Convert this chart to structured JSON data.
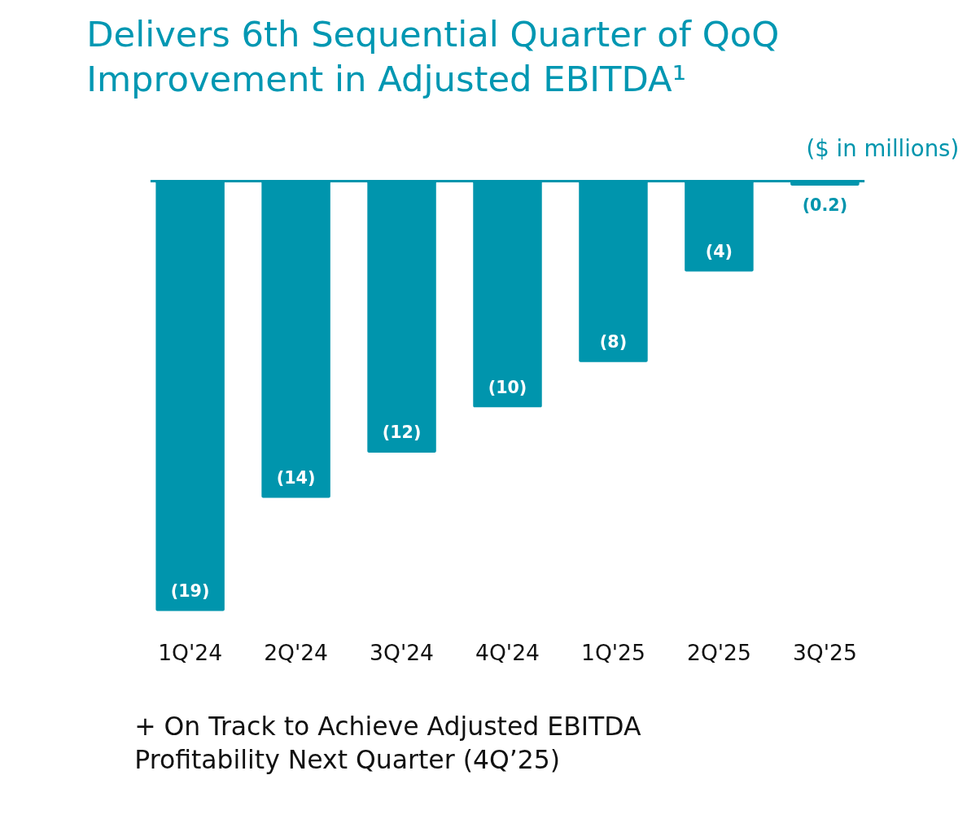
{
  "chart_data": {
    "type": "bar",
    "title": "Delivers 6th Sequential Quarter of QoQ\nImprovement in Adjusted EBITDA¹",
    "subtitle": "($ in millions)",
    "categories": [
      "1Q'24",
      "2Q'24",
      "3Q'24",
      "4Q'24",
      "1Q'25",
      "2Q'25",
      "3Q'25"
    ],
    "values": [
      -19,
      -14,
      -12,
      -10,
      -8,
      -4,
      -0.2
    ],
    "value_labels": [
      "(19)",
      "(14)",
      "(12)",
      "(10)",
      "(8)",
      "(4)",
      "(0.2)"
    ],
    "color": "#0095ad",
    "annotations": [
      "+  On Track to Achieve Adjusted EBITDA\n    Profitability Next Quarter (4Q’25)"
    ],
    "grid": false
  }
}
